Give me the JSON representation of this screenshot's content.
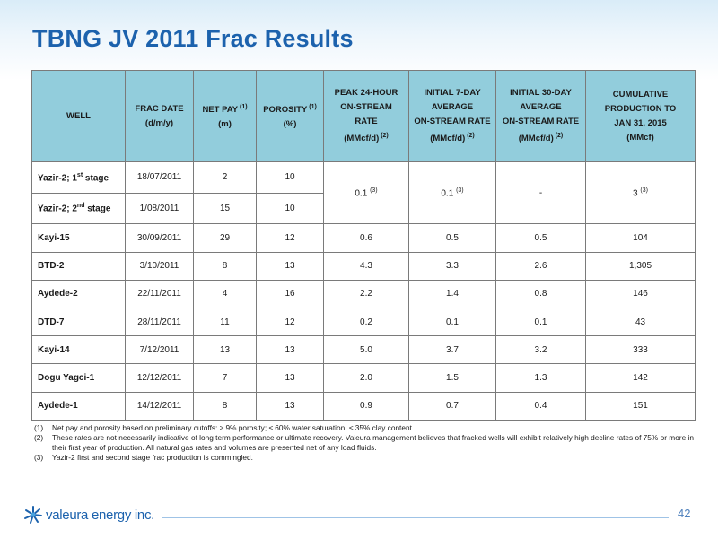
{
  "title": "TBNG JV 2011 Frac Results",
  "table": {
    "headers": [
      {
        "lines": [
          "WELL"
        ],
        "sup": ""
      },
      {
        "lines": [
          "FRAC DATE",
          "(d/m/y)"
        ],
        "sup": ""
      },
      {
        "lines": [
          "NET PAY",
          "(m)"
        ],
        "sup": "(1)"
      },
      {
        "lines": [
          "POROSITY",
          "(%)"
        ],
        "sup": "(1)"
      },
      {
        "lines": [
          "PEAK 24-HOUR",
          "ON-STREAM",
          "RATE",
          "(MMcf/d)"
        ],
        "sup": "(2)"
      },
      {
        "lines": [
          "INITIAL 7-DAY",
          "AVERAGE",
          "ON-STREAM RATE",
          "(MMcf/d)"
        ],
        "sup": "(2)"
      },
      {
        "lines": [
          "INITIAL 30-DAY",
          "AVERAGE",
          "ON-STREAM RATE",
          "(MMcf/d)"
        ],
        "sup": "(2)"
      },
      {
        "lines": [
          "CUMULATIVE",
          "PRODUCTION TO",
          "JAN 31, 2015",
          "(MMcf)"
        ],
        "sup": ""
      }
    ],
    "merged_rows": [
      {
        "well": "Yazir-2; 1",
        "well_sup": "st",
        "well_suffix": " stage",
        "frac_date": "18/07/2011",
        "net_pay": "2",
        "porosity": "10"
      },
      {
        "well": "Yazir-2; 2",
        "well_sup": "nd",
        "well_suffix": " stage",
        "frac_date": "1/08/2011",
        "net_pay": "15",
        "porosity": "10"
      }
    ],
    "merged_values": {
      "peak": "0.1",
      "peak_sup": "(3)",
      "initial7": "0.1",
      "initial7_sup": "(3)",
      "initial30": "-",
      "cumulative": "3",
      "cumulative_sup": "(3)"
    },
    "rows": [
      {
        "well": "Kayi-15",
        "frac_date": "30/09/2011",
        "net_pay": "29",
        "porosity": "12",
        "peak": "0.6",
        "initial7": "0.5",
        "initial30": "0.5",
        "cumulative": "104"
      },
      {
        "well": "BTD-2",
        "frac_date": "3/10/2011",
        "net_pay": "8",
        "porosity": "13",
        "peak": "4.3",
        "initial7": "3.3",
        "initial30": "2.6",
        "cumulative": "1,305"
      },
      {
        "well": "Aydede-2",
        "frac_date": "22/11/2011",
        "net_pay": "4",
        "porosity": "16",
        "peak": "2.2",
        "initial7": "1.4",
        "initial30": "0.8",
        "cumulative": "146"
      },
      {
        "well": "DTD-7",
        "frac_date": "28/11/2011",
        "net_pay": "11",
        "porosity": "12",
        "peak": "0.2",
        "initial7": "0.1",
        "initial30": "0.1",
        "cumulative": "43"
      },
      {
        "well": "Kayi-14",
        "frac_date": "7/12/2011",
        "net_pay": "13",
        "porosity": "13",
        "peak": "5.0",
        "initial7": "3.7",
        "initial30": "3.2",
        "cumulative": "333"
      },
      {
        "well": "Dogu Yagci-1",
        "frac_date": "12/12/2011",
        "net_pay": "7",
        "porosity": "13",
        "peak": "2.0",
        "initial7": "1.5",
        "initial30": "1.3",
        "cumulative": "142"
      },
      {
        "well": "Aydede-1",
        "frac_date": "14/12/2011",
        "net_pay": "8",
        "porosity": "13",
        "peak": "0.9",
        "initial7": "0.7",
        "initial30": "0.4",
        "cumulative": "151"
      }
    ]
  },
  "footnotes": [
    {
      "num": "(1)",
      "text": "Net pay and porosity based on preliminary cutoffs: ≥ 9% porosity; ≤ 60% water saturation; ≤ 35% clay content."
    },
    {
      "num": "(2)",
      "text": "These rates are not necessarily indicative of long term performance or ultimate recovery. Valeura management believes that fracked wells will exhibit relatively high decline rates of 75% or more in their first year of production. All natural gas rates and volumes are presented net of any load fluids."
    },
    {
      "num": "(3)",
      "text": "Yazir-2 first and second stage frac production is commingled."
    }
  ],
  "footer": {
    "logo_text": "valeura energy inc.",
    "logo_icon": "valeura-starburst-icon",
    "page_number": "42"
  },
  "colors": {
    "title": "#1c62ad",
    "header_fill": "#92cddc",
    "footer_line": "#9fc3e6"
  }
}
